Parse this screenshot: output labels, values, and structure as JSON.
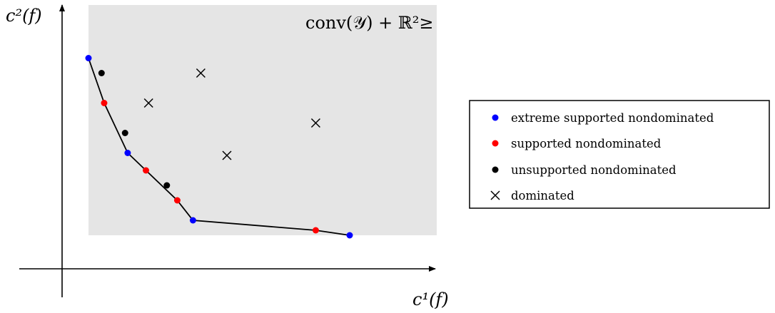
{
  "colors": {
    "extreme_supported_nondominated": "#0000ff",
    "supported_nondominated": "#ff0000",
    "unsupported_nondominated": "#000000",
    "dominated": "#000000",
    "region_fill": "#e5e5e5"
  },
  "axes": {
    "x_label": "c¹(f)",
    "y_label": "c²(f)"
  },
  "region": {
    "label": "conv(𝒴) + ℝ²≥"
  },
  "legend": {
    "items": [
      {
        "label": "extreme supported nondominated",
        "marker": "dot",
        "colorKey": "extreme_supported_nondominated"
      },
      {
        "label": "supported nondominated",
        "marker": "dot",
        "colorKey": "supported_nondominated"
      },
      {
        "label": "unsupported nondominated",
        "marker": "dot",
        "colorKey": "unsupported_nondominated"
      },
      {
        "label": "dominated",
        "marker": "cross",
        "colorKey": "dominated"
      }
    ]
  },
  "points": {
    "extreme_supported_nondominated": [
      [
        1.0,
        8.6
      ],
      [
        2.5,
        4.8
      ],
      [
        5.0,
        2.1
      ],
      [
        11.0,
        1.5
      ]
    ],
    "supported_nondominated": [
      [
        1.6,
        6.8
      ],
      [
        3.2,
        4.1
      ],
      [
        4.4,
        2.9
      ],
      [
        9.7,
        1.7
      ]
    ],
    "unsupported_nondominated": [
      [
        1.5,
        8.0
      ],
      [
        2.4,
        5.6
      ],
      [
        4.0,
        3.5
      ]
    ],
    "dominated": [
      [
        3.3,
        6.8
      ],
      [
        5.3,
        8.0
      ],
      [
        6.3,
        4.7
      ],
      [
        9.7,
        6.0
      ]
    ]
  },
  "frontier_order": [
    [
      1.0,
      8.6
    ],
    [
      1.6,
      6.8
    ],
    [
      2.5,
      4.8
    ],
    [
      3.2,
      4.1
    ],
    [
      4.4,
      2.9
    ],
    [
      5.0,
      2.1
    ],
    [
      9.7,
      1.7
    ],
    [
      11.0,
      1.5
    ]
  ]
}
